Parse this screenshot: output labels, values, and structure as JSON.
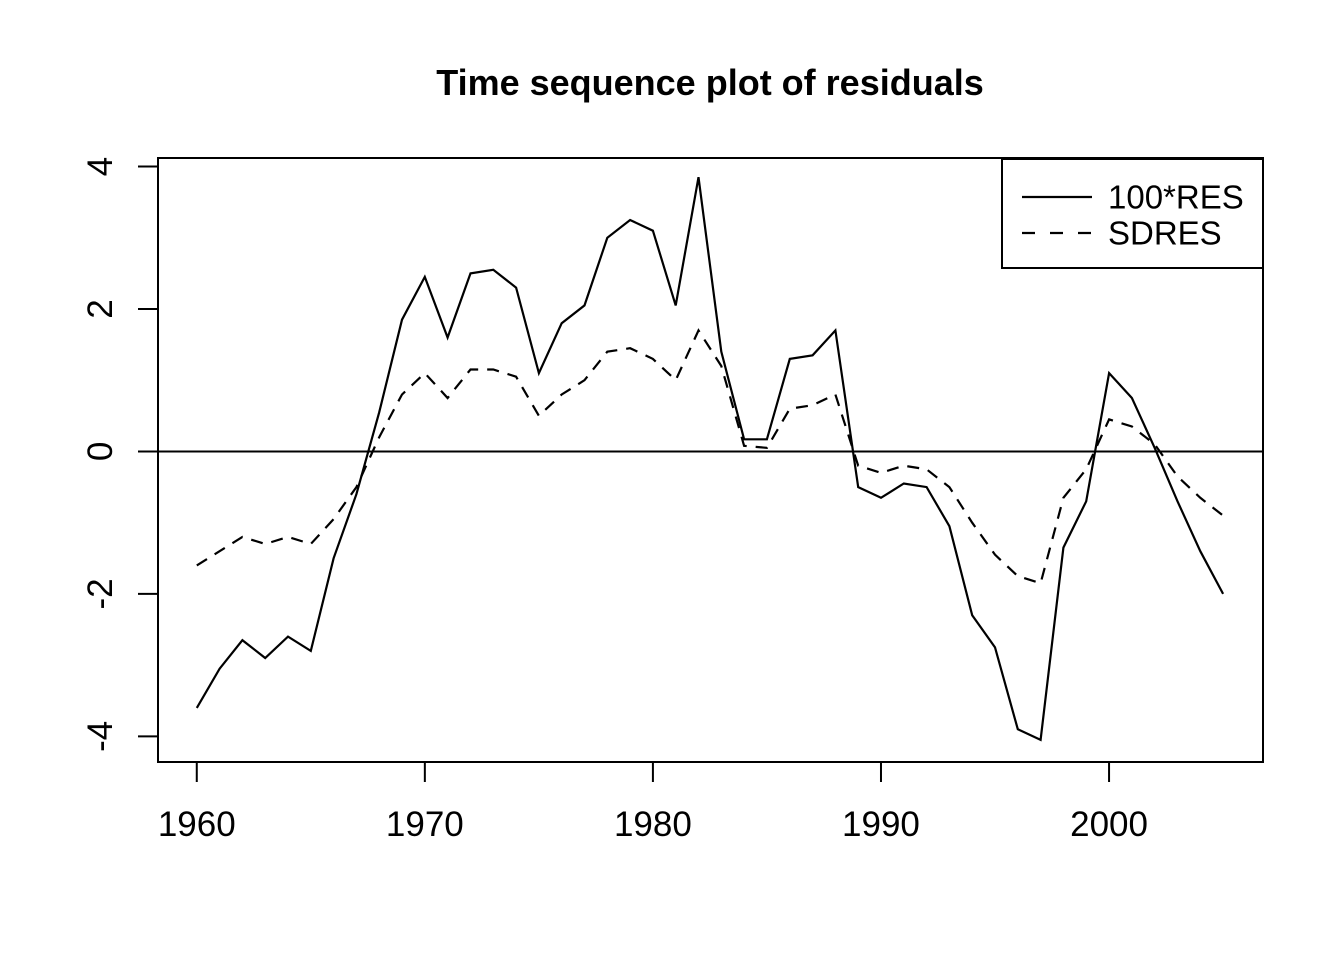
{
  "chart_data": {
    "type": "line",
    "title": "Time sequence plot of residuals",
    "xlabel": "",
    "ylabel": "",
    "x": [
      1960,
      1961,
      1962,
      1963,
      1964,
      1965,
      1966,
      1967,
      1968,
      1969,
      1970,
      1971,
      1972,
      1973,
      1974,
      1975,
      1976,
      1977,
      1978,
      1979,
      1980,
      1981,
      1982,
      1983,
      1984,
      1985,
      1986,
      1987,
      1988,
      1989,
      1990,
      1991,
      1992,
      1993,
      1994,
      1995,
      1996,
      1997,
      1998,
      1999,
      2000,
      2001,
      2002,
      2003,
      2004,
      2005
    ],
    "series": [
      {
        "name": "100*RES",
        "style": "solid",
        "values": [
          -3.6,
          -3.05,
          -2.65,
          -2.9,
          -2.6,
          -2.8,
          -1.5,
          -0.6,
          0.55,
          1.85,
          2.45,
          1.6,
          2.5,
          2.55,
          2.3,
          1.1,
          1.8,
          2.05,
          3.0,
          3.25,
          3.1,
          2.05,
          3.85,
          1.4,
          0.17,
          0.17,
          1.3,
          1.35,
          1.7,
          -0.5,
          -0.65,
          -0.45,
          -0.5,
          -1.05,
          -2.3,
          -2.75,
          -3.9,
          -4.05,
          -1.35,
          -0.7,
          1.1,
          0.75,
          0.05,
          -0.7,
          -1.4,
          -2.0
        ]
      },
      {
        "name": "SDRES",
        "style": "dashed",
        "values": [
          -1.6,
          -1.4,
          -1.2,
          -1.3,
          -1.2,
          -1.3,
          -0.95,
          -0.5,
          0.2,
          0.8,
          1.1,
          0.75,
          1.15,
          1.15,
          1.05,
          0.5,
          0.8,
          1.0,
          1.4,
          1.45,
          1.3,
          1.0,
          1.7,
          1.2,
          0.08,
          0.05,
          0.6,
          0.65,
          0.8,
          -0.2,
          -0.3,
          -0.2,
          -0.25,
          -0.5,
          -1.0,
          -1.45,
          -1.75,
          -1.85,
          -0.65,
          -0.25,
          0.45,
          0.35,
          0.1,
          -0.35,
          -0.65,
          -0.9
        ]
      }
    ],
    "xlim": [
      1958.3,
      2006.75
    ],
    "ylim": [
      -4.36,
      4.12
    ],
    "xticks": [
      1960,
      1970,
      1980,
      1990,
      2000
    ],
    "xtick_labels": [
      "1960",
      "1970",
      "1980",
      "1990",
      "2000"
    ],
    "yticks": [
      -4,
      -2,
      0,
      2,
      4
    ],
    "ytick_labels": [
      "-4",
      "-2",
      "0",
      "2",
      "4"
    ],
    "refline_y": 0,
    "grid": "off",
    "legend_position": "topright",
    "line_color": "#000000",
    "background_color": "#ffffff"
  }
}
